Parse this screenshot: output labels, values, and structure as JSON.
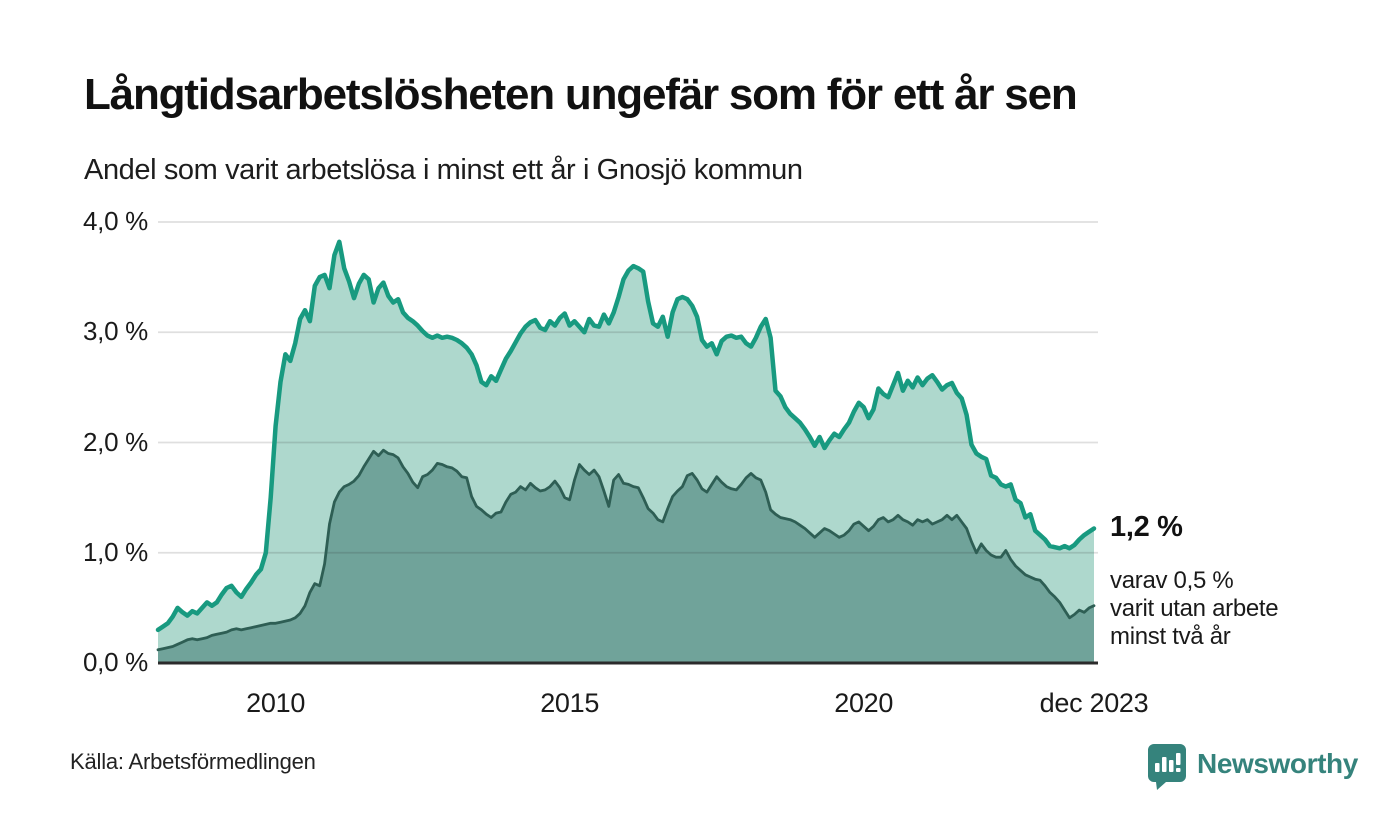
{
  "header": {
    "title": "Långtidsarbetslösheten ungefär som för ett år sen",
    "subtitle": "Andel som varit arbetslösa i minst ett år i Gnosjö kommun"
  },
  "annotation": {
    "value_label": "1,2 %",
    "sub_lines": [
      "varav 0,5 %",
      "varit utan arbete",
      "minst två år"
    ]
  },
  "footer": {
    "source": "Källa: Arbetsförmedlingen",
    "brand": "Newsworthy"
  },
  "colors": {
    "line_one_year": "#189a80",
    "fill_one_year": "#aed8cd",
    "line_two_year": "#2e5e54",
    "fill_two_year": "#70a39a",
    "grid_overlay": "rgba(40,40,40,0.15)",
    "baseline": "#2b2b2b",
    "brand_teal": "#35837c",
    "text": "#111111"
  },
  "chart_data": {
    "type": "area",
    "title": "Långtidsarbetslösheten ungefär som för ett år sen",
    "subtitle": "Andel som varit arbetslösa i minst ett år i Gnosjö kommun",
    "unit": "%",
    "frequency": "monthly",
    "x_start": "2008-01",
    "x_end": "2023-12",
    "ylim": [
      0,
      4
    ],
    "grid": true,
    "legend_position": "none",
    "y_ticks": [
      {
        "label": "4,0 %",
        "value": 4
      },
      {
        "label": "3,0 %",
        "value": 3
      },
      {
        "label": "2,0 %",
        "value": 2
      },
      {
        "label": "1,0 %",
        "value": 1
      },
      {
        "label": "0,0 %",
        "value": 0
      }
    ],
    "x_ticks": [
      {
        "label": "2010",
        "month_index": 24
      },
      {
        "label": "2015",
        "month_index": 84
      },
      {
        "label": "2020",
        "month_index": 144
      },
      {
        "label": "dec 2023",
        "month_index": 191
      }
    ],
    "series": [
      {
        "name": "Arbetslösa minst ett år",
        "end_label": "1,2 %",
        "end_value": 1.2,
        "values": [
          0.3,
          0.33,
          0.36,
          0.42,
          0.5,
          0.46,
          0.43,
          0.47,
          0.45,
          0.5,
          0.55,
          0.52,
          0.55,
          0.62,
          0.68,
          0.7,
          0.64,
          0.6,
          0.67,
          0.73,
          0.8,
          0.85,
          1.0,
          1.5,
          2.15,
          2.55,
          2.8,
          2.74,
          2.9,
          3.12,
          3.2,
          3.1,
          3.42,
          3.5,
          3.52,
          3.4,
          3.7,
          3.82,
          3.58,
          3.46,
          3.31,
          3.44,
          3.52,
          3.48,
          3.27,
          3.4,
          3.45,
          3.33,
          3.27,
          3.3,
          3.18,
          3.13,
          3.1,
          3.06,
          3.01,
          2.97,
          2.95,
          2.97,
          2.95,
          2.96,
          2.95,
          2.93,
          2.9,
          2.86,
          2.8,
          2.7,
          2.55,
          2.52,
          2.6,
          2.56,
          2.66,
          2.76,
          2.83,
          2.91,
          2.99,
          3.05,
          3.09,
          3.11,
          3.04,
          3.02,
          3.1,
          3.06,
          3.13,
          3.17,
          3.06,
          3.1,
          3.05,
          3.0,
          3.12,
          3.06,
          3.05,
          3.16,
          3.08,
          3.18,
          3.32,
          3.48,
          3.56,
          3.6,
          3.58,
          3.55,
          3.28,
          3.08,
          3.05,
          3.14,
          2.96,
          3.18,
          3.3,
          3.32,
          3.3,
          3.24,
          3.14,
          2.93,
          2.87,
          2.9,
          2.8,
          2.92,
          2.96,
          2.97,
          2.95,
          2.96,
          2.9,
          2.87,
          2.95,
          3.05,
          3.12,
          2.95,
          2.47,
          2.42,
          2.32,
          2.26,
          2.22,
          2.18,
          2.12,
          2.05,
          1.97,
          2.05,
          1.95,
          2.02,
          2.08,
          2.05,
          2.12,
          2.18,
          2.28,
          2.36,
          2.32,
          2.22,
          2.3,
          2.49,
          2.44,
          2.41,
          2.52,
          2.63,
          2.47,
          2.56,
          2.5,
          2.59,
          2.52,
          2.58,
          2.61,
          2.55,
          2.48,
          2.52,
          2.54,
          2.45,
          2.4,
          2.25,
          1.98,
          1.9,
          1.87,
          1.85,
          1.7,
          1.68,
          1.62,
          1.6,
          1.62,
          1.48,
          1.45,
          1.32,
          1.35,
          1.2,
          1.16,
          1.12,
          1.06,
          1.05,
          1.04,
          1.06,
          1.04,
          1.07,
          1.12,
          1.16,
          1.19,
          1.22
        ]
      },
      {
        "name": "varav utan arbete minst två år",
        "end_label": "0,5 %",
        "end_value": 0.5,
        "values": [
          0.12,
          0.13,
          0.14,
          0.15,
          0.17,
          0.19,
          0.21,
          0.22,
          0.21,
          0.22,
          0.23,
          0.25,
          0.26,
          0.27,
          0.28,
          0.3,
          0.31,
          0.3,
          0.31,
          0.32,
          0.33,
          0.34,
          0.35,
          0.36,
          0.36,
          0.37,
          0.38,
          0.39,
          0.41,
          0.45,
          0.52,
          0.64,
          0.72,
          0.7,
          0.9,
          1.26,
          1.46,
          1.55,
          1.6,
          1.62,
          1.65,
          1.7,
          1.78,
          1.85,
          1.92,
          1.88,
          1.93,
          1.9,
          1.89,
          1.86,
          1.78,
          1.72,
          1.64,
          1.59,
          1.69,
          1.71,
          1.75,
          1.81,
          1.8,
          1.78,
          1.77,
          1.74,
          1.69,
          1.68,
          1.51,
          1.42,
          1.39,
          1.35,
          1.32,
          1.36,
          1.37,
          1.46,
          1.53,
          1.55,
          1.6,
          1.57,
          1.63,
          1.59,
          1.56,
          1.57,
          1.6,
          1.65,
          1.59,
          1.5,
          1.48,
          1.66,
          1.8,
          1.75,
          1.71,
          1.75,
          1.69,
          1.56,
          1.42,
          1.66,
          1.71,
          1.63,
          1.62,
          1.6,
          1.59,
          1.5,
          1.4,
          1.36,
          1.3,
          1.28,
          1.4,
          1.51,
          1.56,
          1.6,
          1.7,
          1.72,
          1.66,
          1.58,
          1.55,
          1.62,
          1.69,
          1.64,
          1.6,
          1.58,
          1.57,
          1.62,
          1.68,
          1.72,
          1.68,
          1.66,
          1.55,
          1.39,
          1.35,
          1.32,
          1.31,
          1.3,
          1.28,
          1.25,
          1.22,
          1.18,
          1.14,
          1.18,
          1.22,
          1.2,
          1.17,
          1.14,
          1.16,
          1.2,
          1.26,
          1.28,
          1.24,
          1.2,
          1.24,
          1.3,
          1.32,
          1.28,
          1.3,
          1.34,
          1.3,
          1.28,
          1.25,
          1.3,
          1.28,
          1.3,
          1.26,
          1.28,
          1.3,
          1.34,
          1.3,
          1.34,
          1.28,
          1.22,
          1.1,
          1.0,
          1.08,
          1.02,
          0.98,
          0.96,
          0.96,
          1.02,
          0.94,
          0.88,
          0.84,
          0.8,
          0.78,
          0.76,
          0.75,
          0.7,
          0.64,
          0.6,
          0.55,
          0.48,
          0.41,
          0.44,
          0.48,
          0.46,
          0.5,
          0.52
        ]
      }
    ]
  }
}
